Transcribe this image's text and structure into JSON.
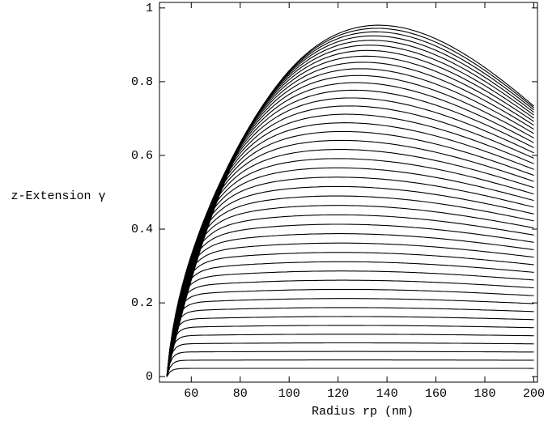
{
  "chart_data": {
    "type": "contour",
    "xlabel": "Radius rp (nm)",
    "ylabel": "z-Extension γ",
    "xlim": [
      47,
      201.5
    ],
    "ylim": [
      -0.015,
      1.015
    ],
    "xticks": [
      60,
      80,
      100,
      120,
      140,
      160,
      180,
      200
    ],
    "yticks": [
      0,
      {
        "value": 0.2,
        "label": "0.2"
      },
      {
        "value": 0.4,
        "label": "0.4"
      },
      {
        "value": 0.6,
        "label": "0.6"
      },
      {
        "value": 0.8,
        "label": "0.8"
      },
      1
    ],
    "color": "#000000"
  }
}
